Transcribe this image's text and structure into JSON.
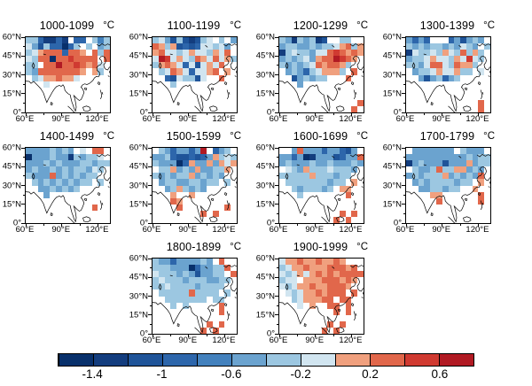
{
  "chart_data": {
    "type": "heatmap",
    "description": "Multi-panel gridded temperature anomaly maps over Asia by century",
    "unit": "°C",
    "map_extent": {
      "lon_min": 60,
      "lon_max": 130,
      "lat_min": 0,
      "lat_max": 60,
      "cell_deg": 5
    },
    "axes": {
      "x_ticks": [
        {
          "lon": 60,
          "label": "60°E"
        },
        {
          "lon": 90,
          "label": "90°E"
        },
        {
          "lon": 120,
          "label": "120°E"
        }
      ],
      "x_minor_ticks": [
        75,
        105
      ],
      "y_ticks": [
        {
          "lat": 60,
          "label": "60°N"
        },
        {
          "lat": 45,
          "label": "45°N"
        },
        {
          "lat": 30,
          "label": "30°N"
        },
        {
          "lat": 15,
          "label": "15°N"
        },
        {
          "lat": 0,
          "label": "0°"
        }
      ],
      "y_minor_ticks": [
        52.5,
        37.5,
        22.5,
        7.5
      ]
    },
    "colorbar": {
      "bin_edges": [
        -1.6,
        -1.4,
        -1.2,
        -1.0,
        -0.8,
        -0.6,
        -0.4,
        -0.2,
        0.0,
        0.2,
        0.4,
        0.6,
        0.8
      ],
      "tick_labels": [
        "-1.4",
        "-1",
        "-0.6",
        "-0.2",
        "0.2",
        "0.6"
      ],
      "tick_boundary_indices": [
        1,
        3,
        5,
        7,
        9,
        11
      ],
      "colors": [
        "#08306b",
        "#133d7e",
        "#1f5499",
        "#2d66ab",
        "#4381bd",
        "#6ba3cf",
        "#9cc7e1",
        "#d1e5f0",
        "#f0a07e",
        "#e1674b",
        "#d03a31",
        "#b11a23"
      ]
    },
    "cell_codes": "0123456789AB",
    "no_data_char": ".",
    "grid_rows_order": "north-to-south, 55-60N down to 0-5N, 14 columns 60E-130E",
    "panels": [
      {
        "title": "1000-1099",
        "grid": [
          "6631131.33.646",
          "752633036.6.56",
          "6789993998.969",
          "7699099A9999.9",
          "66.99B99A9897.",
          "6599999998.86.",
          ".67889887.....",
          "...7..........",
          "..............",
          "..............",
          "..............",
          ".............."
        ]
      },
      {
        "title": "1100-1199",
        "grid": [
          "6752621267.6.5",
          "9868232377675.",
          "8977678776879.",
          "7BA78769879786",
          "689873727879..",
          ".6798737789.8.",
          "..3276627..9..",
          "...6..........",
          "..............",
          "..............",
          "..............",
          ".............."
        ]
      },
      {
        "title": "1200-1299",
        "grid": [
          "65165612..66..",
          "56655656678968",
          "167665779A9898",
          "565675899BA98.",
          "656567989986..",
          ".5653678886.9.",
          "..256566...9..",
          "...5..........",
          "..............",
          "..............",
          ".............9",
          "............9."
        ]
      },
      {
        "title": "1300-1399",
        "grid": [
          "5353...352565.",
          "656566565765.6",
          "1766768769686.",
          "5667877687A76.",
          "665799769886..",
          ".5667877866.7.",
          "..5256356.....",
          "..............",
          "..............",
          "..............",
          "............9.",
          "............9."
        ]
      },
      {
        "title": "1400-1499",
        "grid": [
          "55556565.7.99.",
          "0555655165667.",
          "55565655566566",
          "5655656566576.",
          "655595656566..",
          ".6565656566.6.",
          "..5565656.....",
          "...5..........",
          "..............",
          "...........9..",
          "..............",
          ".............."
        ]
      },
      {
        "title": "1500-1599",
        "grid": [
          ".6535535B.356.",
          "55632232358676",
          "65550385585878",
          ".668565855668.",
          "656566856565..",
          ".5665566566.6.",
          "..5686565.....",
          "...8..8.......",
          "...98.........",
          "....9.......9.",
          "........9.9...",
          ".............."
        ]
      },
      {
        "title": "1600-1699",
        "grid": [
          "..59555355325.",
          "55350155523559",
          "56555655655565",
          ".765866676665.",
          "666668666566..",
          ".6666666566.8.",
          "..6566656.88..",
          "...6.......9..",
          "..............",
          "..............",
          "..........9.9.",
          ".........9.9.."
        ]
      },
      {
        "title": "1700-1799",
        "grid": [
          ".5555555.6555.",
          "55555555556566",
          "15655525558566",
          ".655696688565.",
          "5656668565659.",
          ".5656666566.8.",
          "..5566566..8..",
          "....88......9.",
          ".....9......9.",
          "..............",
          "..............",
          ".............."
        ]
      },
      {
        "title": "1800-1899",
        "grid": [
          "6553555565.9..",
          "6665550355669.",
          "766656525566.9",
          "6766656665566.",
          "667666656666..",
          ".6666696666.6.",
          "..6666666.66..",
          "...6.6.....9..",
          "...........9..",
          "..............",
          ".........9.9..",
          "........9.9..."
        ]
      },
      {
        "title": "1900-1999",
        "grid": [
          "78898898898...",
          "6788988899989.",
          "76787898989999",
          "677.888999898.",
          "767889889998..",
          ".7678898999.9.",
          "..6788899.99..",
          "...7.8..99.9..",
          ".........9.9..",
          "..............",
          "........9.9...",
          ".......9.9...."
        ]
      }
    ]
  }
}
